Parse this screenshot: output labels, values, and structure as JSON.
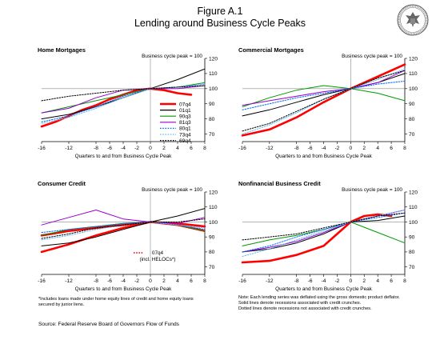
{
  "figure": {
    "title": "Figure A.1",
    "subtitle": "Lending around Business Cycle Peaks",
    "source": "Source:  Federal Reserve Board of Governors Flow of Funds",
    "footnote_left": [
      "*Includes loans made under home equity lines of credit and home equity loans",
      "secured by junior liens."
    ],
    "footnote_right": [
      "Note: Each lending series was deflated using the gross domestic product deflator.",
      "Solid lines denote recessions associated with credit crunches.",
      "Dotted lines denote recessions not associated with credit crunches."
    ]
  },
  "colors": {
    "07q4": "#ff0000",
    "01q1": "#000000",
    "90q3": "#009900",
    "81q3": "#9900cc",
    "80q1": "#0066ff",
    "73q4": "#66bbee",
    "69q4": "#000000"
  },
  "chart_data": [
    {
      "type": "line",
      "title": "Home Mortgages",
      "annotation": "Business cycle peak = 100",
      "xlabel": "Quarters to and from Business Cycle Peak",
      "xlim": [
        -16,
        8
      ],
      "ylim": [
        65,
        120
      ],
      "x_ticks": [
        -16,
        -12,
        -8,
        -6,
        -4,
        -2,
        0,
        2,
        4,
        6,
        8
      ],
      "y_ticks": [
        70,
        80,
        90,
        100,
        110,
        120
      ],
      "legend": [
        "07q4",
        "01q1",
        "90q3",
        "81q3",
        "80q1",
        "73q4",
        "69q4"
      ],
      "series": [
        {
          "name": "07q4",
          "style": "solid",
          "x": [
            -16,
            -14,
            -12,
            -10,
            -8,
            -6,
            -4,
            -2,
            0,
            2,
            4,
            6
          ],
          "y": [
            75,
            78,
            82,
            86,
            89,
            93,
            96,
            99,
            100,
            99,
            97,
            96
          ]
        },
        {
          "name": "01q1",
          "style": "solid",
          "x": [
            -16,
            -12,
            -8,
            -4,
            0,
            4,
            8
          ],
          "y": [
            80,
            83,
            88,
            94,
            100,
            106,
            113
          ]
        },
        {
          "name": "90q3",
          "style": "solid",
          "x": [
            -16,
            -12,
            -8,
            -4,
            0,
            4,
            8
          ],
          "y": [
            84,
            88,
            92,
            96,
            100,
            101,
            104
          ]
        },
        {
          "name": "81q3",
          "style": "solid",
          "x": [
            -16,
            -12,
            -8,
            -4,
            0,
            4,
            8
          ],
          "y": [
            84,
            87,
            94,
            99,
            100,
            100,
            102
          ]
        },
        {
          "name": "80q1",
          "style": "dotted",
          "x": [
            -16,
            -12,
            -8,
            -4,
            0,
            4,
            8
          ],
          "y": [
            78,
            82,
            88,
            95,
            100,
            101,
            103
          ]
        },
        {
          "name": "73q4",
          "style": "dotted",
          "x": [
            -16,
            -12,
            -8,
            -4,
            0,
            4,
            8
          ],
          "y": [
            77,
            81,
            87,
            94,
            100,
            101,
            103
          ]
        },
        {
          "name": "69q4",
          "style": "dotted",
          "x": [
            -16,
            -12,
            -8,
            -4,
            0,
            4,
            8
          ],
          "y": [
            92,
            95,
            97,
            99,
            100,
            101,
            102
          ]
        }
      ]
    },
    {
      "type": "line",
      "title": "Commercial Mortgages",
      "annotation": "Business cycle peak = 100",
      "xlabel": "Quarters to and from Business Cycle Peak",
      "xlim": [
        -16,
        8
      ],
      "ylim": [
        65,
        120
      ],
      "x_ticks": [
        -16,
        -12,
        -8,
        -6,
        -4,
        -2,
        0,
        2,
        4,
        6,
        8
      ],
      "y_ticks": [
        70,
        80,
        90,
        100,
        110,
        120
      ],
      "series": [
        {
          "name": "07q4",
          "style": "solid",
          "x": [
            -16,
            -12,
            -8,
            -4,
            0,
            4,
            8
          ],
          "y": [
            69,
            73,
            81,
            91,
            100,
            108,
            116
          ]
        },
        {
          "name": "01q1",
          "style": "solid",
          "x": [
            -16,
            -12,
            -8,
            -4,
            0,
            4,
            8
          ],
          "y": [
            82,
            86,
            91,
            96,
            100,
            104,
            110
          ]
        },
        {
          "name": "90q3",
          "style": "solid",
          "x": [
            -16,
            -12,
            -8,
            -4,
            0,
            4,
            8
          ],
          "y": [
            88,
            94,
            99,
            102,
            100,
            97,
            92
          ]
        },
        {
          "name": "81q3",
          "style": "solid",
          "x": [
            -16,
            -12,
            -8,
            -4,
            0,
            4,
            8
          ],
          "y": [
            89,
            92,
            95,
            98,
            100,
            104,
            112
          ]
        },
        {
          "name": "80q1",
          "style": "dotted",
          "x": [
            -16,
            -12,
            -8,
            -4,
            0,
            4,
            8
          ],
          "y": [
            86,
            90,
            94,
            97,
            100,
            103,
            105
          ]
        },
        {
          "name": "73q4",
          "style": "dotted",
          "x": [
            -16,
            -12,
            -8,
            -4,
            0,
            4,
            8
          ],
          "y": [
            70,
            76,
            84,
            93,
            100,
            106,
            113
          ]
        },
        {
          "name": "69q4",
          "style": "dotted",
          "x": [
            -16,
            -12,
            -8,
            -4,
            0,
            4,
            8
          ],
          "y": [
            72,
            77,
            85,
            93,
            100,
            107,
            112
          ]
        }
      ]
    },
    {
      "type": "line",
      "title": "Consumer Credit",
      "annotation": "Business cycle peak = 100",
      "xlabel": "Quarters to and from Business Cycle Peak",
      "legend_note": [
        "07q4",
        "(incl. HELOCs*)"
      ],
      "xlim": [
        -16,
        8
      ],
      "ylim": [
        65,
        120
      ],
      "x_ticks": [
        -16,
        -12,
        -8,
        -6,
        -4,
        -2,
        0,
        2,
        4,
        6,
        8
      ],
      "y_ticks": [
        70,
        80,
        90,
        100,
        110,
        120
      ],
      "series": [
        {
          "name": "07q4",
          "style": "solid",
          "x": [
            -16,
            -12,
            -8,
            -4,
            0,
            4,
            8
          ],
          "y": [
            91,
            94,
            96,
            98,
            100,
            99,
            97
          ]
        },
        {
          "name": "07q4 (incl. HELOCs*)",
          "style": "dotted",
          "x": [
            -16,
            -12,
            -8,
            -4,
            0,
            4,
            8
          ],
          "y": [
            80,
            85,
            91,
            96,
            100,
            98,
            94
          ]
        },
        {
          "name": "01q1",
          "style": "solid",
          "x": [
            -16,
            -12,
            -8,
            -4,
            0,
            4,
            8
          ],
          "y": [
            84,
            86,
            90,
            95,
            100,
            104,
            109
          ]
        },
        {
          "name": "90q3",
          "style": "solid",
          "x": [
            -16,
            -12,
            -8,
            -4,
            0,
            4,
            8
          ],
          "y": [
            91,
            95,
            97,
            99,
            100,
            98,
            94
          ]
        },
        {
          "name": "81q3",
          "style": "solid",
          "x": [
            -16,
            -12,
            -8,
            -4,
            0,
            4,
            8
          ],
          "y": [
            98,
            103,
            108,
            102,
            100,
            99,
            103
          ]
        },
        {
          "name": "80q1",
          "style": "dotted",
          "x": [
            -16,
            -12,
            -8,
            -4,
            0,
            4,
            8
          ],
          "y": [
            93,
            95,
            97,
            99,
            100,
            98,
            95
          ]
        },
        {
          "name": "73q4",
          "style": "dotted",
          "x": [
            -16,
            -12,
            -8,
            -4,
            0,
            4,
            8
          ],
          "y": [
            88,
            91,
            95,
            98,
            100,
            98,
            96
          ]
        },
        {
          "name": "69q4",
          "style": "dotted",
          "x": [
            -16,
            -12,
            -8,
            -4,
            0,
            4,
            8
          ],
          "y": [
            89,
            92,
            96,
            98,
            100,
            100,
            102
          ]
        }
      ]
    },
    {
      "type": "line",
      "title": "Nonfinancial Business Credit",
      "annotation": "Business cycle peak = 100",
      "xlabel": "Quarters to and from Business Cycle Peak",
      "xlim": [
        -16,
        8
      ],
      "ylim": [
        65,
        120
      ],
      "x_ticks": [
        -16,
        -12,
        -8,
        -6,
        -4,
        -2,
        0,
        2,
        4,
        6,
        8
      ],
      "y_ticks": [
        70,
        80,
        90,
        100,
        110,
        120
      ],
      "series": [
        {
          "name": "07q4",
          "style": "solid",
          "x": [
            -16,
            -12,
            -8,
            -4,
            0,
            2,
            4,
            6
          ],
          "y": [
            73,
            74,
            78,
            84,
            100,
            104,
            105,
            104
          ]
        },
        {
          "name": "01q1",
          "style": "solid",
          "x": [
            -16,
            -12,
            -8,
            -4,
            0,
            4,
            8
          ],
          "y": [
            80,
            82,
            86,
            92,
            100,
            101,
            104
          ]
        },
        {
          "name": "90q3",
          "style": "solid",
          "x": [
            -16,
            -12,
            -8,
            -4,
            0,
            4,
            8
          ],
          "y": [
            84,
            88,
            91,
            95,
            100,
            93,
            86
          ]
        },
        {
          "name": "81q3",
          "style": "solid",
          "x": [
            -16,
            -12,
            -8,
            -4,
            0,
            4,
            8
          ],
          "y": [
            80,
            83,
            87,
            93,
            100,
            104,
            108
          ]
        },
        {
          "name": "80q1",
          "style": "dotted",
          "x": [
            -16,
            -12,
            -8,
            -4,
            0,
            4,
            8
          ],
          "y": [
            80,
            84,
            90,
            95,
            100,
            103,
            106
          ]
        },
        {
          "name": "73q4",
          "style": "dotted",
          "x": [
            -16,
            -12,
            -8,
            -4,
            0,
            4,
            8
          ],
          "y": [
            77,
            82,
            88,
            94,
            100,
            104,
            108
          ]
        },
        {
          "name": "69q4",
          "style": "dotted",
          "x": [
            -16,
            -12,
            -8,
            -4,
            0,
            4,
            8
          ],
          "y": [
            88,
            90,
            92,
            96,
            100,
            104,
            106
          ]
        }
      ]
    }
  ]
}
